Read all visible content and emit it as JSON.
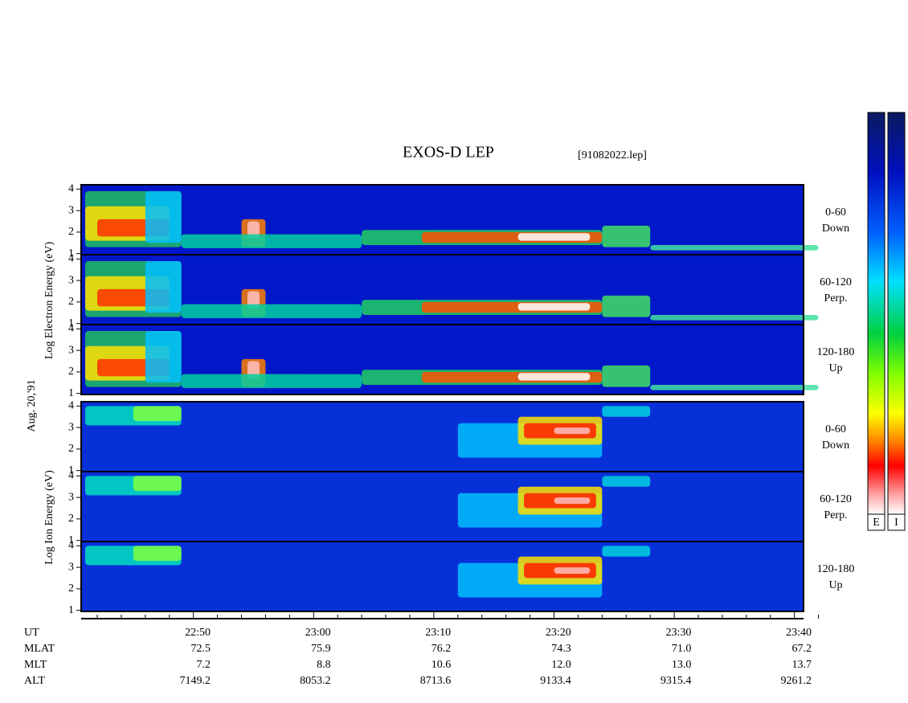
{
  "header": {
    "title": "EXOS-D LEP",
    "file": "[91082022.lep]"
  },
  "panels": [
    {
      "group": "electron",
      "angle": "0-60",
      "direction": "Down"
    },
    {
      "group": "electron",
      "angle": "60-120",
      "direction": "Perp."
    },
    {
      "group": "electron",
      "angle": "120-180",
      "direction": "Up"
    },
    {
      "group": "ion",
      "angle": "0-60",
      "direction": "Down"
    },
    {
      "group": "ion",
      "angle": "60-120",
      "direction": "Perp."
    },
    {
      "group": "ion",
      "angle": "120-180",
      "direction": "Up"
    }
  ],
  "y_axis": {
    "ylim": [
      0.95,
      4.2
    ],
    "yticks": [
      1,
      2,
      3,
      4
    ]
  },
  "axis_labels": {
    "electron": "Log  Electron  Energy  (eV)",
    "ion": "Log  Ion  Energy  (eV)",
    "date": "Aug. 20,'91"
  },
  "ephemeris": {
    "row_names": [
      "UT",
      "MLAT",
      "MLT",
      "ALT"
    ],
    "columns": [
      [
        "22:50",
        "72.5",
        "7.2",
        "7149.2"
      ],
      [
        "23:00",
        "75.9",
        "8.8",
        "8053.2"
      ],
      [
        "23:10",
        "76.2",
        "10.6",
        "8713.6"
      ],
      [
        "23:20",
        "74.3",
        "12.0",
        "9133.4"
      ],
      [
        "23:30",
        "71.0",
        "13.0",
        "9315.4"
      ],
      [
        "23:40",
        "67.2",
        "13.7",
        "9261.2"
      ]
    ]
  },
  "colorbars": [
    "E",
    "I"
  ]
}
